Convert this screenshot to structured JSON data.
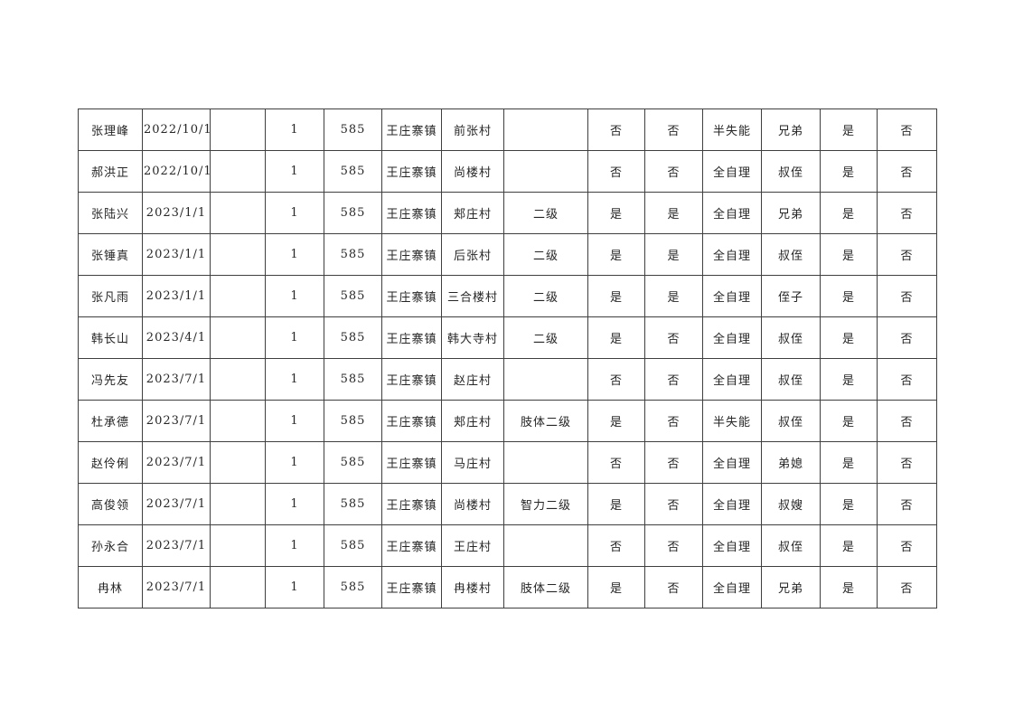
{
  "page": {
    "background_color": "#ffffff",
    "table_border_color": "#3f3f3f",
    "table_text_color": "#262626"
  },
  "table": {
    "rows": [
      [
        "张理峰",
        "2022/10/1",
        "",
        "1",
        "585",
        "王庄寨镇",
        "前张村",
        "",
        "否",
        "否",
        "半失能",
        "兄弟",
        "是",
        "否"
      ],
      [
        "郝洪正",
        "2022/10/1",
        "",
        "1",
        "585",
        "王庄寨镇",
        "尚楼村",
        "",
        "否",
        "否",
        "全自理",
        "叔侄",
        "是",
        "否"
      ],
      [
        "张陆兴",
        "2023/1/1",
        "",
        "1",
        "585",
        "王庄寨镇",
        "郏庄村",
        "二级",
        "是",
        "是",
        "全自理",
        "兄弟",
        "是",
        "否"
      ],
      [
        "张锤真",
        "2023/1/1",
        "",
        "1",
        "585",
        "王庄寨镇",
        "后张村",
        "二级",
        "是",
        "是",
        "全自理",
        "叔侄",
        "是",
        "否"
      ],
      [
        "张凡雨",
        "2023/1/1",
        "",
        "1",
        "585",
        "王庄寨镇",
        "三合楼村",
        "二级",
        "是",
        "是",
        "全自理",
        "侄子",
        "是",
        "否"
      ],
      [
        "韩长山",
        "2023/4/1",
        "",
        "1",
        "585",
        "王庄寨镇",
        "韩大寺村",
        "二级",
        "是",
        "否",
        "全自理",
        "叔侄",
        "是",
        "否"
      ],
      [
        "冯先友",
        "2023/7/1",
        "",
        "1",
        "585",
        "王庄寨镇",
        "赵庄村",
        "",
        "否",
        "否",
        "全自理",
        "叔侄",
        "是",
        "否"
      ],
      [
        "杜承德",
        "2023/7/1",
        "",
        "1",
        "585",
        "王庄寨镇",
        "郏庄村",
        "肢体二级",
        "是",
        "否",
        "半失能",
        "叔侄",
        "是",
        "否"
      ],
      [
        "赵伶俐",
        "2023/7/1",
        "",
        "1",
        "585",
        "王庄寨镇",
        "马庄村",
        "",
        "否",
        "否",
        "全自理",
        "弟媳",
        "是",
        "否"
      ],
      [
        "高俊领",
        "2023/7/1",
        "",
        "1",
        "585",
        "王庄寨镇",
        "尚楼村",
        "智力二级",
        "是",
        "否",
        "全自理",
        "叔嫂",
        "是",
        "否"
      ],
      [
        "孙永合",
        "2023/7/1",
        "",
        "1",
        "585",
        "王庄寨镇",
        "王庄村",
        "",
        "否",
        "否",
        "全自理",
        "叔侄",
        "是",
        "否"
      ],
      [
        "冉林",
        "2023/7/1",
        "",
        "1",
        "585",
        "王庄寨镇",
        "冉楼村",
        "肢体二级",
        "是",
        "否",
        "全自理",
        "兄弟",
        "是",
        "否"
      ]
    ]
  }
}
